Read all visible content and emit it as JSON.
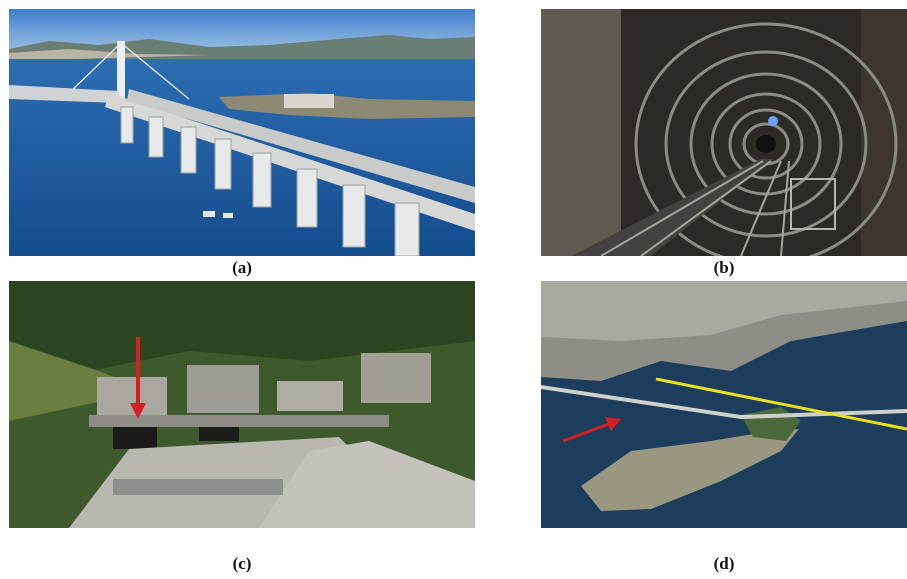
{
  "figure": {
    "panels": [
      {
        "id": "a",
        "caption": "(a)",
        "subject": "bridge-photo"
      },
      {
        "id": "b",
        "caption": "(b)",
        "subject": "tunnel-photo"
      },
      {
        "id": "c",
        "caption": "(c)",
        "subject": "tunnel-portal-photo"
      },
      {
        "id": "d",
        "caption": "(d)",
        "subject": "aerial-photo"
      }
    ]
  },
  "colors": {
    "sky": "#4a86c8",
    "water": "#1f5f9e",
    "arrow_red": "#d62020",
    "line_yellow": "#e8e020",
    "tunnel_dark": "#2a2a28"
  }
}
